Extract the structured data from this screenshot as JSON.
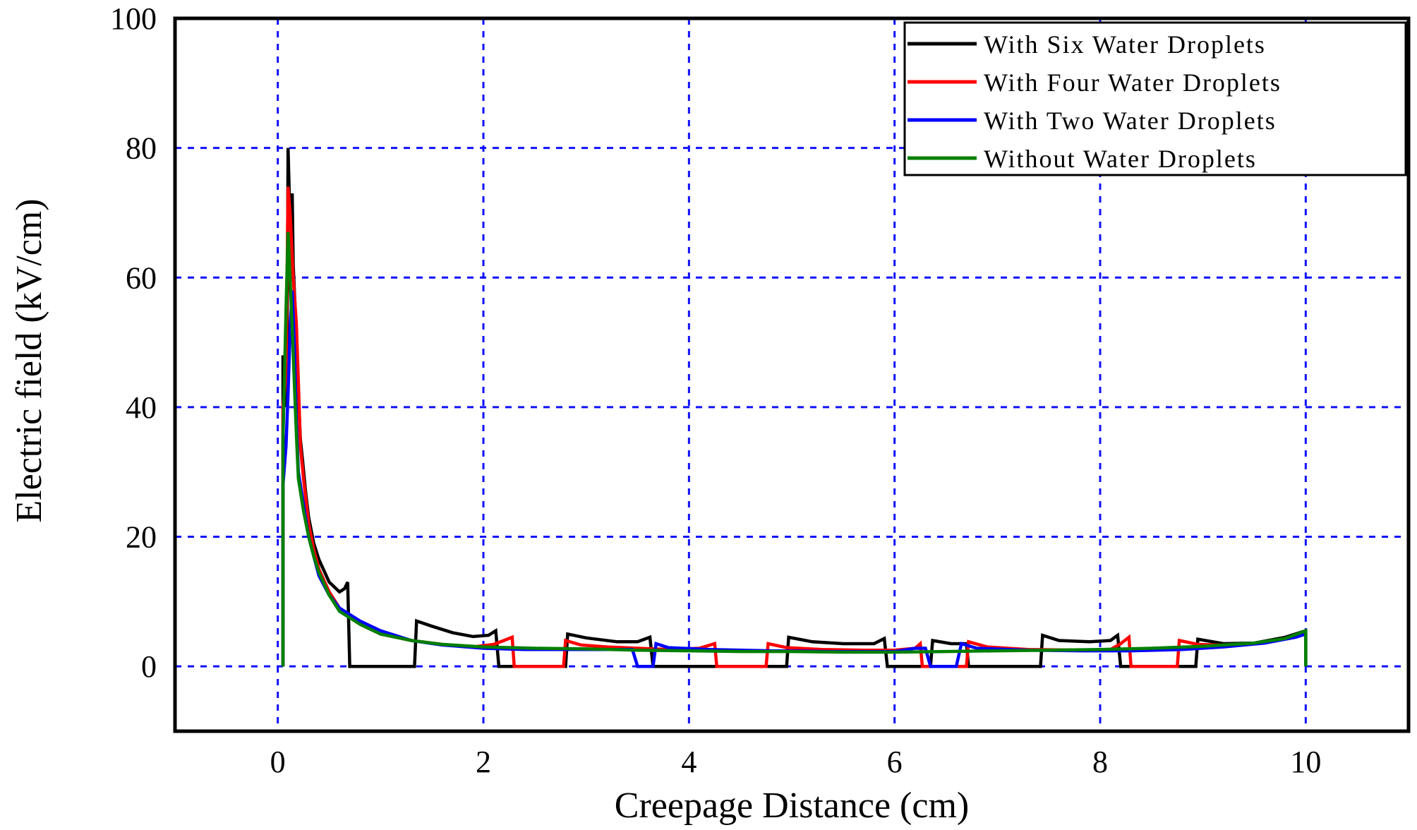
{
  "chart_data": {
    "type": "line",
    "title": "",
    "xlabel": "Creepage Distance (cm)",
    "ylabel": "Electric field (kV/cm)",
    "xlim": [
      -1,
      11
    ],
    "ylim": [
      -10,
      100
    ],
    "xticks": [
      0,
      2,
      4,
      6,
      8,
      10
    ],
    "yticks": [
      0,
      20,
      40,
      60,
      80,
      100
    ],
    "x_tick_labels": [
      "0",
      "2",
      "4",
      "6",
      "8",
      "10"
    ],
    "y_tick_labels": [
      "0",
      "20",
      "40",
      "60",
      "80",
      "100"
    ],
    "grid": true,
    "legend_position": "top-right",
    "series": [
      {
        "name": "With Six Water Droplets",
        "color": "#000000",
        "points": [
          [
            0.05,
            0
          ],
          [
            0.05,
            48
          ],
          [
            0.07,
            40
          ],
          [
            0.09,
            48
          ],
          [
            0.1,
            80
          ],
          [
            0.12,
            68
          ],
          [
            0.14,
            73
          ],
          [
            0.15,
            62
          ],
          [
            0.17,
            55
          ],
          [
            0.18,
            47
          ],
          [
            0.2,
            42
          ],
          [
            0.22,
            35
          ],
          [
            0.24,
            32
          ],
          [
            0.27,
            27
          ],
          [
            0.3,
            23
          ],
          [
            0.35,
            19
          ],
          [
            0.4,
            16.5
          ],
          [
            0.5,
            13
          ],
          [
            0.6,
            11.5
          ],
          [
            0.65,
            12
          ],
          [
            0.68,
            13
          ],
          [
            0.7,
            0
          ],
          [
            1.33,
            0
          ],
          [
            1.35,
            7
          ],
          [
            1.5,
            6.2
          ],
          [
            1.7,
            5.2
          ],
          [
            1.9,
            4.6
          ],
          [
            2.05,
            4.8
          ],
          [
            2.12,
            5.5
          ],
          [
            2.15,
            0
          ],
          [
            2.8,
            0
          ],
          [
            2.82,
            5
          ],
          [
            3.0,
            4.4
          ],
          [
            3.3,
            3.8
          ],
          [
            3.5,
            3.8
          ],
          [
            3.62,
            4.5
          ],
          [
            3.65,
            0
          ],
          [
            4.95,
            0
          ],
          [
            4.97,
            4.5
          ],
          [
            5.2,
            3.8
          ],
          [
            5.5,
            3.5
          ],
          [
            5.8,
            3.5
          ],
          [
            5.9,
            4.3
          ],
          [
            5.93,
            0
          ],
          [
            6.35,
            0
          ],
          [
            6.37,
            4
          ],
          [
            6.55,
            3.5
          ],
          [
            6.7,
            3.5
          ],
          [
            6.72,
            0
          ],
          [
            7.42,
            0
          ],
          [
            7.44,
            4.8
          ],
          [
            7.6,
            4
          ],
          [
            7.9,
            3.8
          ],
          [
            8.1,
            4
          ],
          [
            8.17,
            4.8
          ],
          [
            8.2,
            0
          ],
          [
            8.93,
            0
          ],
          [
            8.95,
            4.2
          ],
          [
            9.2,
            3.5
          ],
          [
            9.5,
            3.6
          ],
          [
            9.8,
            4.5
          ],
          [
            10.0,
            5.5
          ],
          [
            10.0,
            0
          ]
        ]
      },
      {
        "name": "With Four Water Droplets",
        "color": "#ff0000",
        "points": [
          [
            0.05,
            0
          ],
          [
            0.05,
            40
          ],
          [
            0.08,
            45
          ],
          [
            0.1,
            74
          ],
          [
            0.12,
            70
          ],
          [
            0.15,
            60
          ],
          [
            0.18,
            53
          ],
          [
            0.2,
            44
          ],
          [
            0.22,
            34
          ],
          [
            0.25,
            29
          ],
          [
            0.3,
            22
          ],
          [
            0.35,
            18
          ],
          [
            0.4,
            15
          ],
          [
            0.5,
            11.5
          ],
          [
            0.6,
            9
          ],
          [
            0.8,
            6.5
          ],
          [
            1.0,
            5
          ],
          [
            1.3,
            4
          ],
          [
            1.6,
            3.4
          ],
          [
            1.9,
            3
          ],
          [
            2.1,
            3.4
          ],
          [
            2.2,
            4
          ],
          [
            2.28,
            4.5
          ],
          [
            2.3,
            0
          ],
          [
            2.78,
            0
          ],
          [
            2.8,
            4
          ],
          [
            2.95,
            3.3
          ],
          [
            3.2,
            3
          ],
          [
            3.5,
            2.8
          ],
          [
            3.8,
            2.6
          ],
          [
            4.1,
            2.8
          ],
          [
            4.25,
            3.5
          ],
          [
            4.27,
            0
          ],
          [
            4.75,
            0
          ],
          [
            4.77,
            3.5
          ],
          [
            4.95,
            2.9
          ],
          [
            5.3,
            2.6
          ],
          [
            5.7,
            2.5
          ],
          [
            6.0,
            2.5
          ],
          [
            6.2,
            2.8
          ],
          [
            6.25,
            3.5
          ],
          [
            6.27,
            0
          ],
          [
            6.7,
            0
          ],
          [
            6.72,
            3.8
          ],
          [
            6.9,
            3
          ],
          [
            7.3,
            2.6
          ],
          [
            7.8,
            2.5
          ],
          [
            8.1,
            2.6
          ],
          [
            8.2,
            3.5
          ],
          [
            8.28,
            4.5
          ],
          [
            8.3,
            0
          ],
          [
            8.75,
            0
          ],
          [
            8.77,
            4
          ],
          [
            8.95,
            3.4
          ],
          [
            9.3,
            3.2
          ],
          [
            9.6,
            3.6
          ],
          [
            9.85,
            4.5
          ],
          [
            10.0,
            5
          ],
          [
            10.0,
            0
          ]
        ]
      },
      {
        "name": "With Two Water Droplets",
        "color": "#0000ff",
        "points": [
          [
            0.05,
            0
          ],
          [
            0.05,
            28
          ],
          [
            0.08,
            34
          ],
          [
            0.1,
            42
          ],
          [
            0.12,
            52
          ],
          [
            0.14,
            58
          ],
          [
            0.16,
            50
          ],
          [
            0.18,
            38
          ],
          [
            0.2,
            30
          ],
          [
            0.25,
            25
          ],
          [
            0.3,
            20
          ],
          [
            0.35,
            17
          ],
          [
            0.4,
            14
          ],
          [
            0.5,
            11
          ],
          [
            0.6,
            9
          ],
          [
            0.8,
            7
          ],
          [
            1.0,
            5.5
          ],
          [
            1.3,
            4
          ],
          [
            1.6,
            3.3
          ],
          [
            2.0,
            2.8
          ],
          [
            2.4,
            2.6
          ],
          [
            2.8,
            2.6
          ],
          [
            3.2,
            2.6
          ],
          [
            3.45,
            2.6
          ],
          [
            3.5,
            0
          ],
          [
            3.65,
            0
          ],
          [
            3.68,
            3.5
          ],
          [
            3.8,
            2.9
          ],
          [
            4.2,
            2.6
          ],
          [
            4.8,
            2.4
          ],
          [
            5.4,
            2.3
          ],
          [
            6.0,
            2.3
          ],
          [
            6.2,
            2.8
          ],
          [
            6.3,
            2.8
          ],
          [
            6.35,
            0
          ],
          [
            6.6,
            0
          ],
          [
            6.65,
            3.5
          ],
          [
            6.8,
            2.8
          ],
          [
            7.3,
            2.5
          ],
          [
            7.8,
            2.4
          ],
          [
            8.3,
            2.4
          ],
          [
            8.8,
            2.6
          ],
          [
            9.2,
            3
          ],
          [
            9.6,
            3.6
          ],
          [
            9.9,
            4.5
          ],
          [
            10.0,
            5
          ],
          [
            10.0,
            0
          ]
        ]
      },
      {
        "name": "Without Water Droplets",
        "color": "#008000",
        "points": [
          [
            0.05,
            0
          ],
          [
            0.05,
            35
          ],
          [
            0.08,
            55
          ],
          [
            0.1,
            67
          ],
          [
            0.12,
            60
          ],
          [
            0.14,
            52
          ],
          [
            0.16,
            44
          ],
          [
            0.18,
            36
          ],
          [
            0.2,
            29
          ],
          [
            0.25,
            24
          ],
          [
            0.3,
            20
          ],
          [
            0.35,
            17
          ],
          [
            0.4,
            14.5
          ],
          [
            0.5,
            11
          ],
          [
            0.6,
            8.5
          ],
          [
            0.8,
            6.5
          ],
          [
            1.0,
            5
          ],
          [
            1.3,
            4
          ],
          [
            1.6,
            3.4
          ],
          [
            2.0,
            3
          ],
          [
            2.5,
            2.8
          ],
          [
            3.0,
            2.7
          ],
          [
            3.5,
            2.5
          ],
          [
            4.0,
            2.4
          ],
          [
            4.5,
            2.3
          ],
          [
            5.0,
            2.3
          ],
          [
            5.5,
            2.2
          ],
          [
            6.0,
            2.2
          ],
          [
            6.5,
            2.3
          ],
          [
            7.0,
            2.4
          ],
          [
            7.5,
            2.5
          ],
          [
            8.0,
            2.6
          ],
          [
            8.5,
            2.8
          ],
          [
            9.0,
            3.1
          ],
          [
            9.5,
            3.6
          ],
          [
            9.8,
            4.3
          ],
          [
            10.0,
            5.5
          ],
          [
            10.0,
            0
          ]
        ]
      }
    ]
  }
}
